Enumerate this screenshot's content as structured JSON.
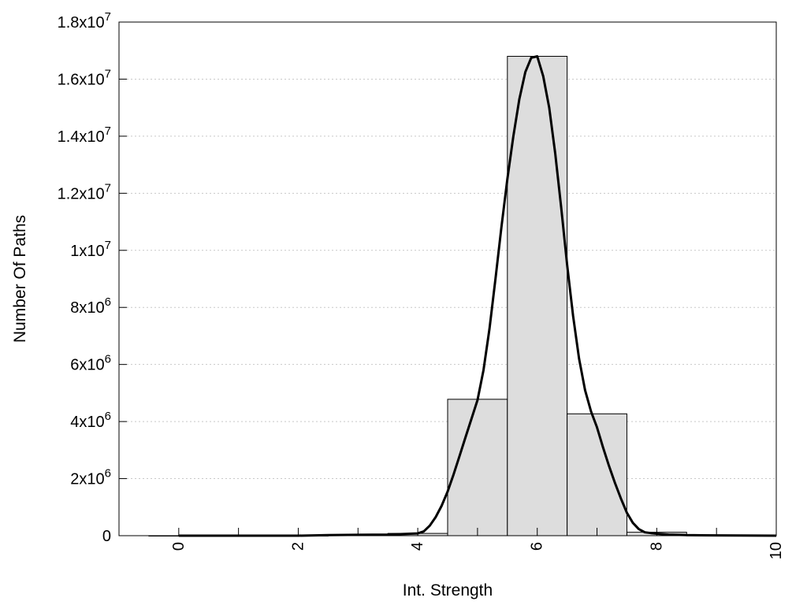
{
  "chart_data": {
    "type": "bar",
    "xlabel": "Int. Strength",
    "ylabel": "Number Of Paths",
    "xlim": [
      -1,
      10
    ],
    "ylim": [
      0,
      18000000
    ],
    "grid": "horizontal-dotted",
    "bin_width": 1,
    "x_ticks": [
      {
        "value": 0,
        "label": "0"
      },
      {
        "value": 2,
        "label": "2"
      },
      {
        "value": 4,
        "label": "4"
      },
      {
        "value": 6,
        "label": "6"
      },
      {
        "value": 8,
        "label": "8"
      },
      {
        "value": 10,
        "label": "10"
      }
    ],
    "y_ticks": [
      {
        "value": 0,
        "mantissa": "0",
        "exponent": ""
      },
      {
        "value": 2000000,
        "mantissa": "2x10",
        "exponent": "6"
      },
      {
        "value": 4000000,
        "mantissa": "4x10",
        "exponent": "6"
      },
      {
        "value": 6000000,
        "mantissa": "6x10",
        "exponent": "6"
      },
      {
        "value": 8000000,
        "mantissa": "8x10",
        "exponent": "6"
      },
      {
        "value": 10000000,
        "mantissa": "1x10",
        "exponent": "7"
      },
      {
        "value": 12000000,
        "mantissa": "1.2x10",
        "exponent": "7"
      },
      {
        "value": 14000000,
        "mantissa": "1.4x10",
        "exponent": "7"
      },
      {
        "value": 16000000,
        "mantissa": "1.6x10",
        "exponent": "7"
      },
      {
        "value": 18000000,
        "mantissa": "1.8x10",
        "exponent": "7"
      }
    ],
    "bars": [
      {
        "x": 0,
        "value": 0
      },
      {
        "x": 1,
        "value": 0
      },
      {
        "x": 2,
        "value": 0
      },
      {
        "x": 3,
        "value": 20000
      },
      {
        "x": 4,
        "value": 80000
      },
      {
        "x": 5,
        "value": 4780000
      },
      {
        "x": 6,
        "value": 16800000
      },
      {
        "x": 7,
        "value": 4270000
      },
      {
        "x": 8,
        "value": 120000
      },
      {
        "x": 9,
        "value": 10000
      }
    ],
    "fit_curve": {
      "x": [
        0,
        1,
        2,
        2.5,
        3,
        3.5,
        3.8,
        4,
        4.1,
        4.2,
        4.3,
        4.4,
        4.5,
        4.6,
        4.7,
        4.8,
        4.9,
        5,
        5.1,
        5.2,
        5.3,
        5.4,
        5.5,
        5.6,
        5.7,
        5.8,
        5.9,
        6,
        6.1,
        6.2,
        6.3,
        6.4,
        6.5,
        6.6,
        6.7,
        6.8,
        6.9,
        7,
        7.1,
        7.2,
        7.3,
        7.4,
        7.5,
        7.6,
        7.7,
        7.8,
        7.9,
        8,
        8.2,
        8.5,
        9,
        10
      ],
      "y": [
        0,
        0,
        0,
        20000,
        30000,
        40000,
        60000,
        80000,
        150000,
        350000,
        650000,
        1050000,
        1550000,
        2150000,
        2800000,
        3450000,
        4100000,
        4750000,
        5800000,
        7250000,
        9000000,
        10800000,
        12500000,
        14000000,
        15300000,
        16250000,
        16750000,
        16800000,
        16100000,
        15000000,
        13400000,
        11500000,
        9500000,
        7700000,
        6200000,
        5100000,
        4350000,
        3800000,
        3100000,
        2450000,
        1850000,
        1300000,
        800000,
        450000,
        230000,
        120000,
        90000,
        70000,
        40000,
        20000,
        10000,
        0
      ]
    }
  }
}
